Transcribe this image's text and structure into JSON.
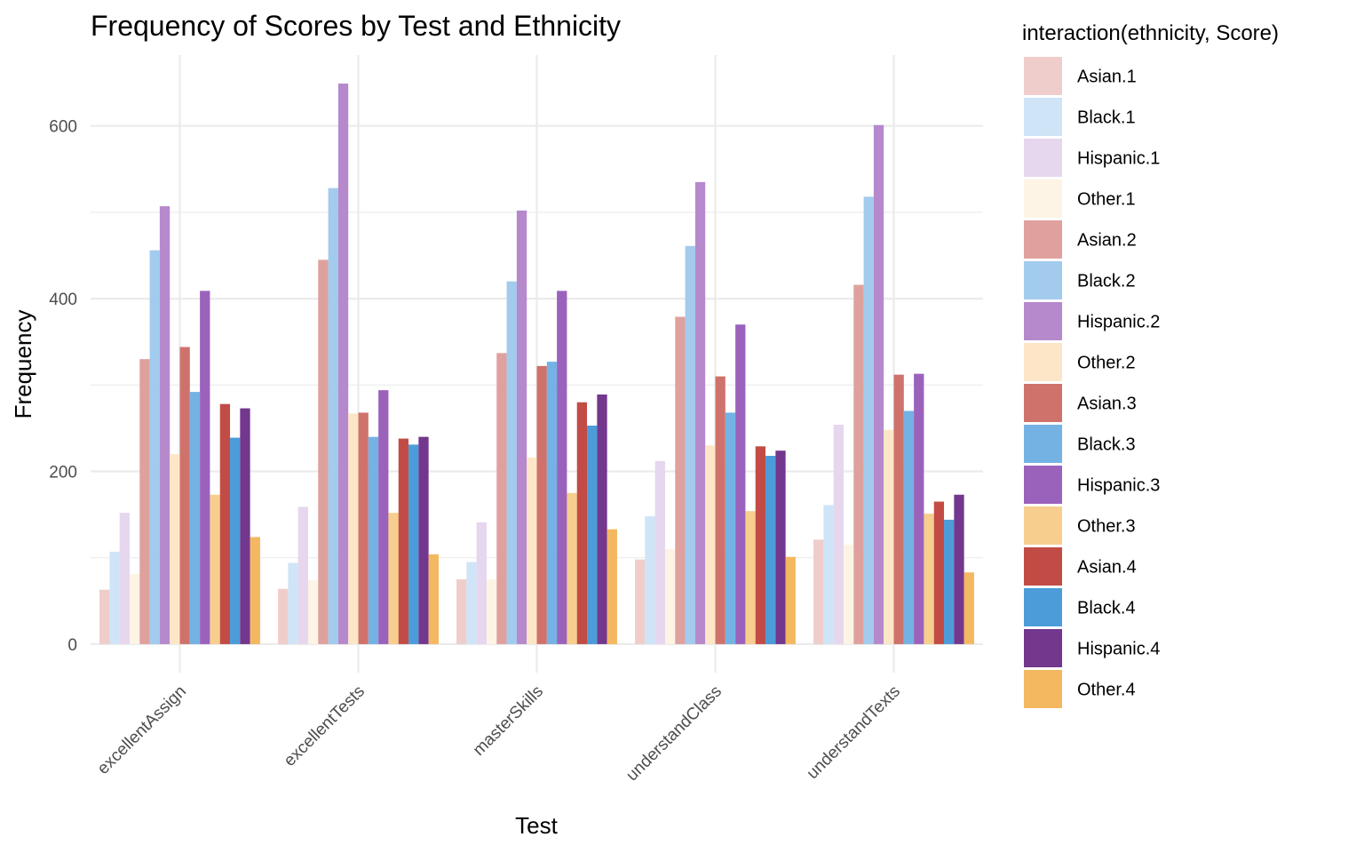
{
  "chart_data": {
    "type": "bar",
    "title": "Frequency of Scores by Test and Ethnicity",
    "xlabel": "Test",
    "ylabel": "Frequency",
    "ylim": [
      -33,
      682
    ],
    "yticks": [
      0,
      200,
      400,
      600
    ],
    "grid": true,
    "legend_title": "interaction(ethnicity, Score)",
    "legend_position": "right",
    "categories": [
      "excellentAssign",
      "excellentTests",
      "masterSkills",
      "understandClass",
      "understandTexts"
    ],
    "series": [
      {
        "name": "Asian.1",
        "color": "#EFCDCB",
        "values": [
          63,
          64,
          75,
          98,
          121
        ]
      },
      {
        "name": "Black.1",
        "color": "#CFE4F7",
        "values": [
          107,
          94,
          95,
          148,
          161
        ]
      },
      {
        "name": "Hispanic.1",
        "color": "#E6D6EE",
        "values": [
          152,
          159,
          141,
          212,
          254
        ]
      },
      {
        "name": "Other.1",
        "color": "#FEF4E5",
        "values": [
          81,
          74,
          75,
          110,
          115
        ]
      },
      {
        "name": "Asian.2",
        "color": "#DFA19E",
        "values": [
          330,
          445,
          337,
          379,
          416
        ]
      },
      {
        "name": "Black.2",
        "color": "#A2CBEE",
        "values": [
          456,
          528,
          420,
          461,
          518
        ]
      },
      {
        "name": "Hispanic.2",
        "color": "#B689CD",
        "values": [
          507,
          649,
          502,
          535,
          601
        ]
      },
      {
        "name": "Other.2",
        "color": "#FDE6C7",
        "values": [
          220,
          267,
          216,
          230,
          248
        ]
      },
      {
        "name": "Asian.3",
        "color": "#CF726C",
        "values": [
          344,
          268,
          322,
          310,
          312
        ]
      },
      {
        "name": "Black.3",
        "color": "#74B2E4",
        "values": [
          292,
          240,
          327,
          268,
          270
        ]
      },
      {
        "name": "Hispanic.3",
        "color": "#9B62BC",
        "values": [
          409,
          294,
          409,
          370,
          313
        ]
      },
      {
        "name": "Other.3",
        "color": "#F7CE8D",
        "values": [
          173,
          152,
          175,
          154,
          151
        ]
      },
      {
        "name": "Asian.4",
        "color": "#C24C45",
        "values": [
          278,
          238,
          280,
          229,
          165
        ]
      },
      {
        "name": "Black.4",
        "color": "#4B9CD9",
        "values": [
          239,
          231,
          253,
          218,
          144
        ]
      },
      {
        "name": "Hispanic.4",
        "color": "#73378D",
        "values": [
          273,
          240,
          289,
          224,
          173
        ]
      },
      {
        "name": "Other.4",
        "color": "#F4B861",
        "values": [
          124,
          104,
          133,
          101,
          83
        ]
      }
    ]
  }
}
